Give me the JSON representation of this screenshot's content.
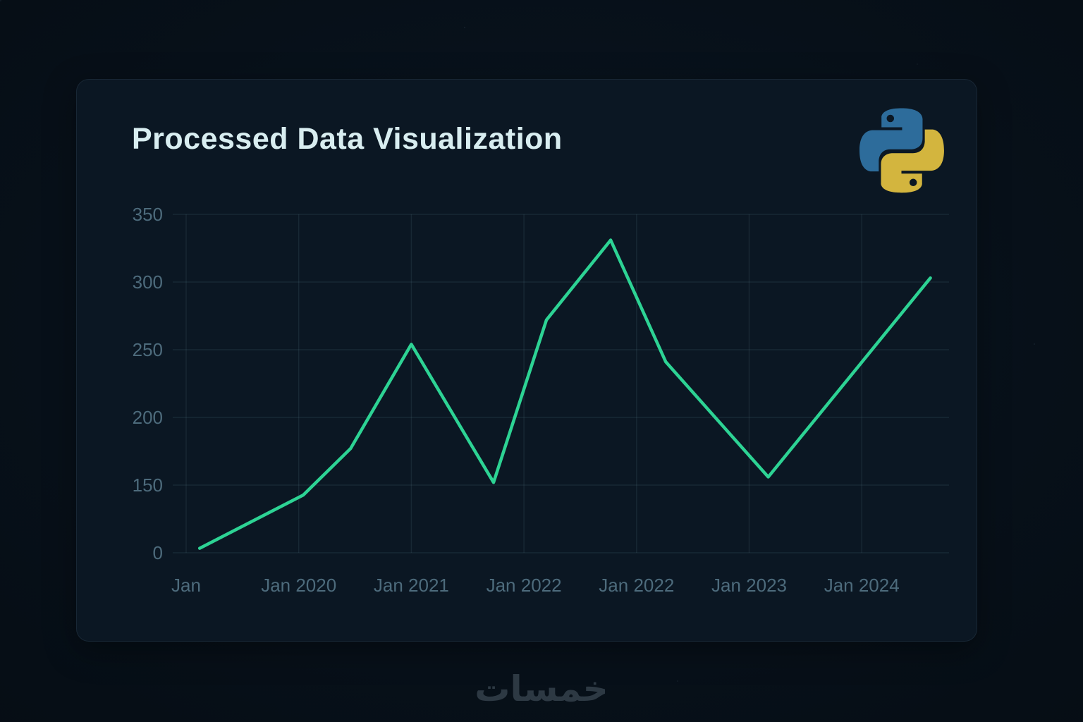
{
  "page": {
    "watermark": "خمسات",
    "background_color": "#071019"
  },
  "card": {
    "background_color": "#0b1723"
  },
  "logo": {
    "name": "python-logo",
    "blue": "#2d6c9b",
    "yellow": "#d3b53e"
  },
  "chart_data": {
    "type": "line",
    "title": "Processed Data Visualization",
    "title_color": "#d8edf0",
    "line_color": "#2dd394",
    "grid": true,
    "legend": false,
    "xlabel": "",
    "ylabel": "",
    "x_tick_labels": [
      "Jan",
      "Jan 2020",
      "Jan 2021",
      "Jan 2022",
      "Jan 2022",
      "Jan 2023",
      "Jan 2024"
    ],
    "y_tick_labels": [
      "350",
      "300",
      "250",
      "200",
      "150",
      "0"
    ],
    "points": [
      {
        "x_unit": 0.12,
        "value": 10
      },
      {
        "x_unit": 1.04,
        "value": 128
      },
      {
        "x_unit": 1.46,
        "value": 177
      },
      {
        "x_unit": 2.0,
        "value": 254
      },
      {
        "x_unit": 2.73,
        "value": 152
      },
      {
        "x_unit": 3.2,
        "value": 272
      },
      {
        "x_unit": 3.77,
        "value": 331
      },
      {
        "x_unit": 4.26,
        "value": 241
      },
      {
        "x_unit": 5.17,
        "value": 156
      },
      {
        "x_unit": 6.61,
        "value": 303
      }
    ]
  }
}
